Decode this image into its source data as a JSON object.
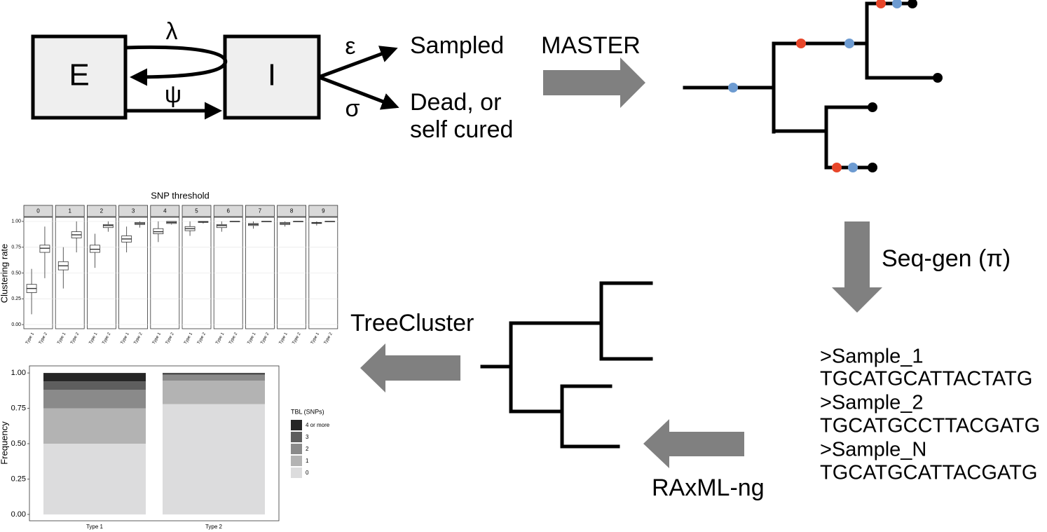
{
  "diagram": {
    "model": {
      "nodes": [
        "E",
        "I"
      ],
      "rates": [
        "λ",
        "ψ",
        "ε",
        "σ"
      ],
      "outcomes": [
        "Sampled",
        "Dead, or",
        "self cured"
      ]
    },
    "steps": [
      "MASTER",
      "Seq-gen (π)",
      "RAxML-ng",
      "TreeCluster"
    ],
    "alignment": [
      ">Sample_1",
      "TGCATGCATTACTATG",
      ">Sample_2",
      "TGCATGCCTTACGATG",
      ">Sample_N",
      "TGCATGCATTACGATG"
    ]
  },
  "chart_data": [
    {
      "type": "box",
      "title": "SNP threshold",
      "y_label": "Clustering rate",
      "facets": [
        "0",
        "1",
        "2",
        "3",
        "4",
        "5",
        "6",
        "7",
        "8",
        "9"
      ],
      "categories": [
        "Type 1",
        "Type 2"
      ],
      "boxes": [
        [
          {
            "whislo": 0.1,
            "q1": 0.31,
            "med": 0.35,
            "q3": 0.39,
            "whishi": 0.54
          },
          {
            "whislo": 0.45,
            "q1": 0.7,
            "med": 0.74,
            "q3": 0.77,
            "whishi": 0.95
          }
        ],
        [
          {
            "whislo": 0.35,
            "q1": 0.53,
            "med": 0.57,
            "q3": 0.61,
            "whishi": 0.75
          },
          {
            "whislo": 0.7,
            "q1": 0.84,
            "med": 0.87,
            "q3": 0.9,
            "whishi": 1
          }
        ],
        [
          {
            "whislo": 0.55,
            "q1": 0.7,
            "med": 0.73,
            "q3": 0.77,
            "whishi": 0.88
          },
          {
            "whislo": 0.9,
            "q1": 0.94,
            "med": 0.96,
            "q3": 0.97,
            "whishi": 1
          }
        ],
        [
          {
            "whislo": 0.7,
            "q1": 0.8,
            "med": 0.83,
            "q3": 0.86,
            "whishi": 0.95
          },
          {
            "whislo": 0.94,
            "q1": 0.97,
            "med": 0.98,
            "q3": 0.99,
            "whishi": 1
          }
        ],
        [
          {
            "whislo": 0.8,
            "q1": 0.88,
            "med": 0.9,
            "q3": 0.93,
            "whishi": 1
          },
          {
            "whislo": 0.97,
            "q1": 0.98,
            "med": 0.99,
            "q3": 1,
            "whishi": 1
          }
        ],
        [
          {
            "whislo": 0.86,
            "q1": 0.91,
            "med": 0.93,
            "q3": 0.95,
            "whishi": 1
          },
          {
            "whislo": 0.98,
            "q1": 0.99,
            "med": 0.995,
            "q3": 1,
            "whishi": 1
          }
        ],
        [
          {
            "whislo": 0.9,
            "q1": 0.94,
            "med": 0.96,
            "q3": 0.97,
            "whishi": 1
          },
          {
            "whislo": 1,
            "q1": 1,
            "med": 1,
            "q3": 1,
            "whishi": 1
          }
        ],
        [
          {
            "whislo": 0.93,
            "q1": 0.96,
            "med": 0.97,
            "q3": 0.98,
            "whishi": 1
          },
          {
            "whislo": 1,
            "q1": 1,
            "med": 1,
            "q3": 1,
            "whishi": 1
          }
        ],
        [
          {
            "whislo": 0.95,
            "q1": 0.97,
            "med": 0.98,
            "q3": 0.99,
            "whishi": 1
          },
          {
            "whislo": 1,
            "q1": 1,
            "med": 1,
            "q3": 1,
            "whishi": 1
          }
        ],
        [
          {
            "whislo": 0.96,
            "q1": 0.98,
            "med": 0.985,
            "q3": 0.99,
            "whishi": 1
          },
          {
            "whislo": 1,
            "q1": 1,
            "med": 1,
            "q3": 1,
            "whishi": 1
          }
        ]
      ],
      "ylim": [
        -0.04,
        1.04
      ],
      "yticks": [
        {
          "value": 0,
          "label": "0.00"
        },
        {
          "value": 0.25,
          "label": "0.25"
        },
        {
          "value": 0.5,
          "label": "0.50"
        },
        {
          "value": 0.75,
          "label": "0.75"
        },
        {
          "value": 1,
          "label": "1.00"
        }
      ],
      "grid": true
    },
    {
      "type": "stacked_bar",
      "y_label": "Frequency",
      "legend_title": "TBL (SNPs)",
      "legend": "right",
      "categories": [
        "Type 1",
        "Type 2"
      ],
      "series": [
        {
          "name": "0",
          "color": "#dcdcdd",
          "values": [
            0.5,
            0.78
          ]
        },
        {
          "name": "1",
          "color": "#b3b3b3",
          "values": [
            0.25,
            0.165
          ]
        },
        {
          "name": "2",
          "color": "#8a8a8a",
          "values": [
            0.13,
            0.04
          ]
        },
        {
          "name": "3",
          "color": "#5e5e5e",
          "values": [
            0.06,
            0.01
          ]
        },
        {
          "name": "4 or more",
          "color": "#262626",
          "values": [
            0.06,
            0.005
          ]
        }
      ],
      "ylim": [
        -0.045,
        1.05
      ],
      "yticks": [
        {
          "value": 0,
          "label": "0.00"
        },
        {
          "value": 0.25,
          "label": "0.25"
        },
        {
          "value": 0.5,
          "label": "0.50"
        },
        {
          "value": 0.75,
          "label": "0.75"
        },
        {
          "value": 1,
          "label": "1.00"
        }
      ]
    }
  ]
}
